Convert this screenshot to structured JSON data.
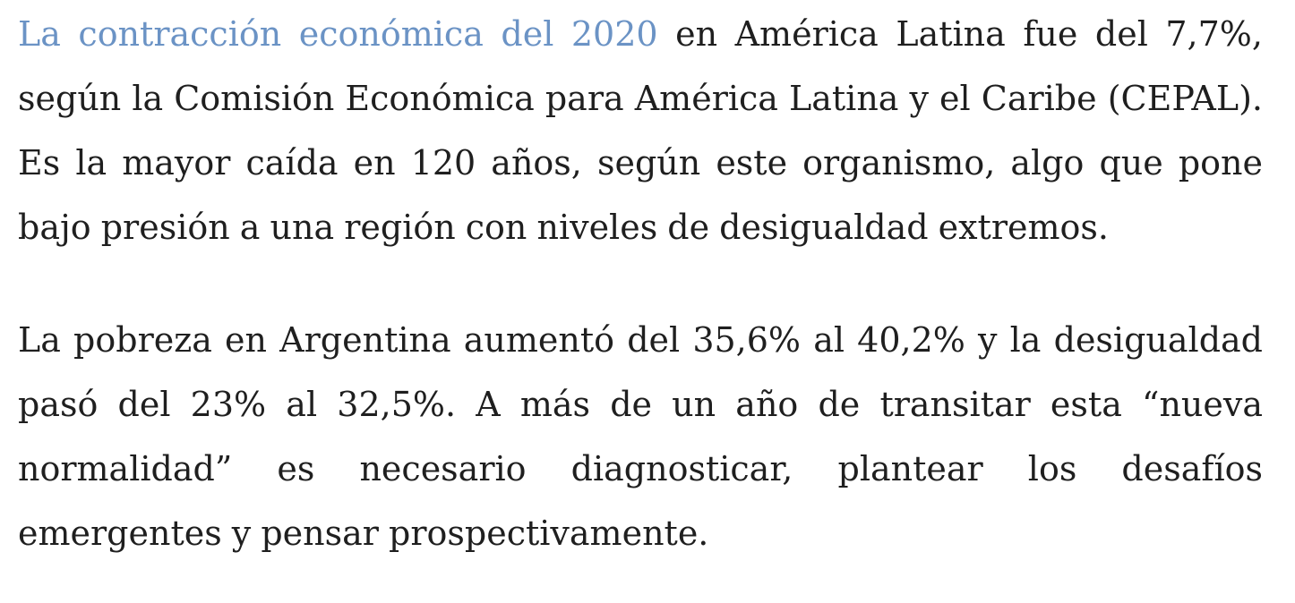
{
  "article": {
    "paragraph_1": {
      "link_text": "La contracción económica del 2020",
      "text_after_link": " en América Latina fue del 7,7%, según la Comisión Económica para América Latina y el Caribe (CEPAL). Es la mayor caída en 120 años, según este organismo, algo que pone bajo presión a una región con niveles de desigualdad extremos."
    },
    "paragraph_2": {
      "text": "La pobreza en Argentina aumentó del 35,6% al 40,2% y la desigualdad pasó del 23% al 32,5%. A más de un año de transitar esta “nueva normalidad” es necesario diagnosticar, plantear los desafíos emergentes y pensar prospectivamente."
    },
    "colors": {
      "link": "#6b93c5",
      "body_text": "#1f1f1f",
      "background": "#ffffff"
    }
  }
}
